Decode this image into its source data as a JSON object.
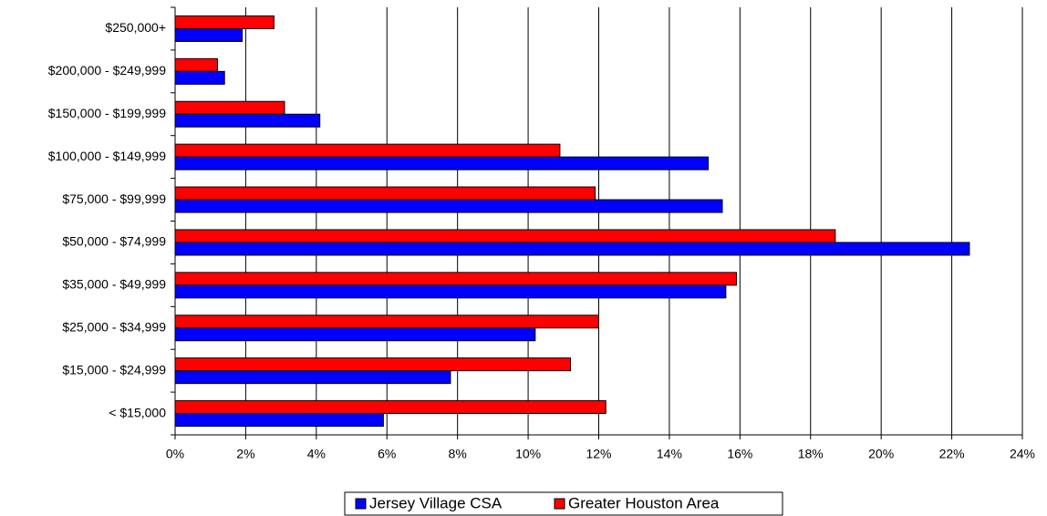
{
  "chart_data": {
    "type": "hbar",
    "categories": [
      "$250,000+",
      "$200,000 - $249,999",
      "$150,000 - $199,999",
      "$100,000 - $149,999",
      "$75,000 - $99,999",
      "$50,000 - $74,999",
      "$35,000 - $49,999",
      "$25,000 - $34,999",
      "$15,000 - $24,999",
      "< $15,000"
    ],
    "series": [
      {
        "name": "Jersey Village CSA",
        "color": "#0000ff",
        "values": [
          1.9,
          1.4,
          4.1,
          15.1,
          15.5,
          22.5,
          15.6,
          10.2,
          7.8,
          5.9
        ]
      },
      {
        "name": "Greater Houston Area",
        "color": "#ff0000",
        "values": [
          2.8,
          1.2,
          3.1,
          10.9,
          11.9,
          18.7,
          15.9,
          12.0,
          11.2,
          12.2
        ]
      }
    ],
    "xlim": [
      0,
      24
    ],
    "xticks": [
      {
        "value": 0,
        "label": "0%"
      },
      {
        "value": 2,
        "label": "2%"
      },
      {
        "value": 4,
        "label": "4%"
      },
      {
        "value": 6,
        "label": "6%"
      },
      {
        "value": 8,
        "label": "8%"
      },
      {
        "value": 10,
        "label": "10%"
      },
      {
        "value": 12,
        "label": "12%"
      },
      {
        "value": 14,
        "label": "14%"
      },
      {
        "value": 16,
        "label": "16%"
      },
      {
        "value": 18,
        "label": "18%"
      },
      {
        "value": 20,
        "label": "20%"
      },
      {
        "value": 22,
        "label": "22%"
      },
      {
        "value": 24,
        "label": "24%"
      }
    ],
    "grid": true,
    "legend": "bottom"
  }
}
